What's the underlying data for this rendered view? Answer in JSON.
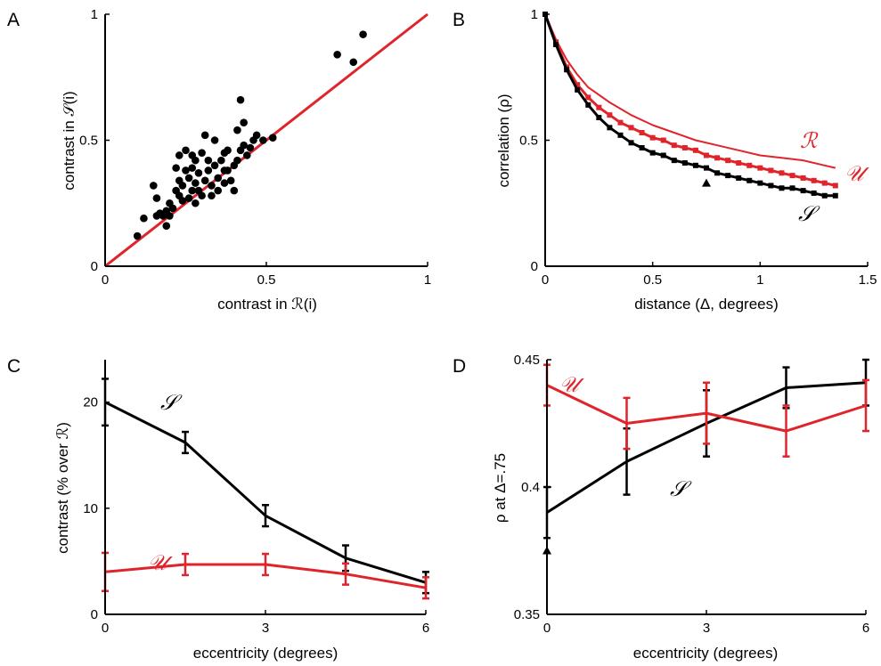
{
  "colors": {
    "black": "#000000",
    "red": "#e0242b",
    "background": "#ffffff"
  },
  "chart_data": [
    {
      "panel": "A",
      "type": "scatter",
      "xlabel": "contrast in ℛ(i)",
      "ylabel": "contrast in 𝒮(i)",
      "xlim": [
        0,
        1
      ],
      "ylim": [
        0,
        1
      ],
      "xticks": [
        "0",
        "0.5",
        "1"
      ],
      "yticks": [
        "0",
        "0.5",
        "1"
      ],
      "grid": false,
      "series": [
        {
          "color": "#000000",
          "marker": "dot",
          "points": [
            [
              0.1,
              0.12
            ],
            [
              0.12,
              0.19
            ],
            [
              0.16,
              0.2
            ],
            [
              0.17,
              0.21
            ],
            [
              0.18,
              0.2
            ],
            [
              0.19,
              0.16
            ],
            [
              0.19,
              0.22
            ],
            [
              0.2,
              0.25
            ],
            [
              0.21,
              0.23
            ],
            [
              0.22,
              0.3
            ],
            [
              0.22,
              0.39
            ],
            [
              0.23,
              0.28
            ],
            [
              0.23,
              0.34
            ],
            [
              0.23,
              0.44
            ],
            [
              0.24,
              0.26
            ],
            [
              0.24,
              0.32
            ],
            [
              0.25,
              0.38
            ],
            [
              0.25,
              0.46
            ],
            [
              0.26,
              0.27
            ],
            [
              0.26,
              0.35
            ],
            [
              0.27,
              0.3
            ],
            [
              0.27,
              0.39
            ],
            [
              0.28,
              0.25
            ],
            [
              0.28,
              0.33
            ],
            [
              0.28,
              0.42
            ],
            [
              0.29,
              0.3
            ],
            [
              0.29,
              0.37
            ],
            [
              0.3,
              0.28
            ],
            [
              0.3,
              0.45
            ],
            [
              0.31,
              0.34
            ],
            [
              0.31,
              0.52
            ],
            [
              0.32,
              0.38
            ],
            [
              0.33,
              0.32
            ],
            [
              0.33,
              0.28
            ],
            [
              0.34,
              0.4
            ],
            [
              0.34,
              0.5
            ],
            [
              0.35,
              0.35
            ],
            [
              0.35,
              0.3
            ],
            [
              0.36,
              0.42
            ],
            [
              0.37,
              0.38
            ],
            [
              0.37,
              0.33
            ],
            [
              0.38,
              0.46
            ],
            [
              0.38,
              0.38
            ],
            [
              0.39,
              0.34
            ],
            [
              0.4,
              0.4
            ],
            [
              0.4,
              0.3
            ],
            [
              0.41,
              0.42
            ],
            [
              0.41,
              0.54
            ],
            [
              0.42,
              0.46
            ],
            [
              0.43,
              0.48
            ],
            [
              0.44,
              0.44
            ],
            [
              0.45,
              0.47
            ],
            [
              0.46,
              0.5
            ],
            [
              0.47,
              0.52
            ],
            [
              0.49,
              0.5
            ],
            [
              0.52,
              0.51
            ],
            [
              0.37,
              0.45
            ],
            [
              0.2,
              0.2
            ],
            [
              0.15,
              0.32
            ],
            [
              0.42,
              0.66
            ],
            [
              0.43,
              0.57
            ],
            [
              0.72,
              0.84
            ],
            [
              0.77,
              0.81
            ],
            [
              0.8,
              0.92
            ],
            [
              0.16,
              0.27
            ],
            [
              0.27,
              0.44
            ],
            [
              0.32,
              0.42
            ]
          ]
        }
      ],
      "lines": [
        {
          "name": "",
          "color": "#e0242b",
          "x": [
            0,
            1
          ],
          "y": [
            0,
            1
          ]
        }
      ]
    },
    {
      "panel": "B",
      "type": "line",
      "xlabel": "distance (Δ, degrees)",
      "ylabel": "correlation (ρ)",
      "xlim": [
        0,
        1.5
      ],
      "ylim": [
        0,
        1
      ],
      "xticks": [
        "0",
        "0.5",
        "1",
        "1.5"
      ],
      "yticks": [
        "0",
        "0.5",
        "1"
      ],
      "grid": false,
      "series": [
        {
          "name": "ℛ",
          "color": "#e0242b",
          "style": "thin",
          "x": [
            0,
            0.05,
            0.1,
            0.15,
            0.2,
            0.3,
            0.4,
            0.5,
            0.6,
            0.7,
            0.8,
            0.9,
            1.0,
            1.1,
            1.2,
            1.3,
            1.35
          ],
          "y": [
            1.0,
            0.9,
            0.82,
            0.76,
            0.71,
            0.65,
            0.6,
            0.56,
            0.53,
            0.5,
            0.48,
            0.46,
            0.44,
            0.43,
            0.42,
            0.4,
            0.39
          ]
        },
        {
          "name": "𝒰",
          "color": "#e0242b",
          "style": "thick-markers",
          "x": [
            0,
            0.05,
            0.1,
            0.15,
            0.2,
            0.25,
            0.3,
            0.35,
            0.4,
            0.45,
            0.5,
            0.55,
            0.6,
            0.65,
            0.7,
            0.75,
            0.8,
            0.85,
            0.9,
            0.95,
            1.0,
            1.05,
            1.1,
            1.15,
            1.2,
            1.25,
            1.3,
            1.35
          ],
          "y": [
            1.0,
            0.89,
            0.79,
            0.72,
            0.67,
            0.63,
            0.6,
            0.57,
            0.55,
            0.53,
            0.51,
            0.5,
            0.48,
            0.47,
            0.46,
            0.44,
            0.43,
            0.42,
            0.41,
            0.4,
            0.39,
            0.38,
            0.37,
            0.36,
            0.35,
            0.34,
            0.33,
            0.32
          ]
        },
        {
          "name": "𝒮",
          "color": "#000000",
          "style": "thick-markers",
          "x": [
            0,
            0.05,
            0.1,
            0.15,
            0.2,
            0.25,
            0.3,
            0.35,
            0.4,
            0.45,
            0.5,
            0.55,
            0.6,
            0.65,
            0.7,
            0.75,
            0.8,
            0.85,
            0.9,
            0.95,
            1.0,
            1.05,
            1.1,
            1.15,
            1.2,
            1.25,
            1.3,
            1.35
          ],
          "y": [
            1.0,
            0.88,
            0.78,
            0.7,
            0.64,
            0.59,
            0.55,
            0.52,
            0.49,
            0.47,
            0.45,
            0.44,
            0.42,
            0.41,
            0.4,
            0.39,
            0.37,
            0.36,
            0.35,
            0.34,
            0.33,
            0.32,
            0.31,
            0.31,
            0.3,
            0.29,
            0.28,
            0.28
          ]
        }
      ],
      "annotations": [
        {
          "type": "triangle",
          "x": 0.75,
          "y": 0.33,
          "color": "#000000"
        }
      ]
    },
    {
      "panel": "C",
      "type": "line",
      "xlabel": "eccentricity (degrees)",
      "ylabel": "contrast (% over ℛ)",
      "xlim": [
        0,
        6
      ],
      "ylim": [
        0,
        24
      ],
      "xticks": [
        "0",
        "3",
        "6"
      ],
      "yticks": [
        "0",
        "10",
        "20"
      ],
      "grid": false,
      "series": [
        {
          "name": "𝒮",
          "color": "#000000",
          "x": [
            0,
            1.5,
            3,
            4.5,
            6
          ],
          "y": [
            20,
            16.2,
            9.3,
            5.3,
            3.0
          ],
          "err": [
            2.2,
            1.0,
            1.0,
            1.2,
            1.0
          ]
        },
        {
          "name": "𝒰",
          "color": "#e0242b",
          "x": [
            0,
            1.5,
            3,
            4.5,
            6
          ],
          "y": [
            4.0,
            4.7,
            4.7,
            3.8,
            2.5
          ],
          "err": [
            1.8,
            1.0,
            1.0,
            1.0,
            1.0
          ]
        }
      ]
    },
    {
      "panel": "D",
      "type": "line",
      "xlabel": "eccentricity (degrees)",
      "ylabel": "ρ at Δ=.75",
      "xlim": [
        0,
        6
      ],
      "ylim": [
        0.35,
        0.45
      ],
      "xticks": [
        "0",
        "3",
        "6"
      ],
      "yticks": [
        "0.35",
        "0.4",
        "0.45"
      ],
      "grid": false,
      "series": [
        {
          "name": "𝒮",
          "color": "#000000",
          "x": [
            0,
            1.5,
            3,
            4.5,
            6
          ],
          "y": [
            0.39,
            0.41,
            0.425,
            0.439,
            0.441
          ],
          "err": [
            0.01,
            0.013,
            0.013,
            0.008,
            0.009
          ]
        },
        {
          "name": "𝒰",
          "color": "#e0242b",
          "x": [
            0,
            1.5,
            3,
            4.5,
            6
          ],
          "y": [
            0.44,
            0.425,
            0.429,
            0.422,
            0.432
          ],
          "err": [
            0.008,
            0.01,
            0.012,
            0.01,
            0.01
          ]
        }
      ],
      "annotations": [
        {
          "type": "triangle",
          "x": 0,
          "y": 0.375,
          "color": "#000000"
        }
      ]
    }
  ]
}
